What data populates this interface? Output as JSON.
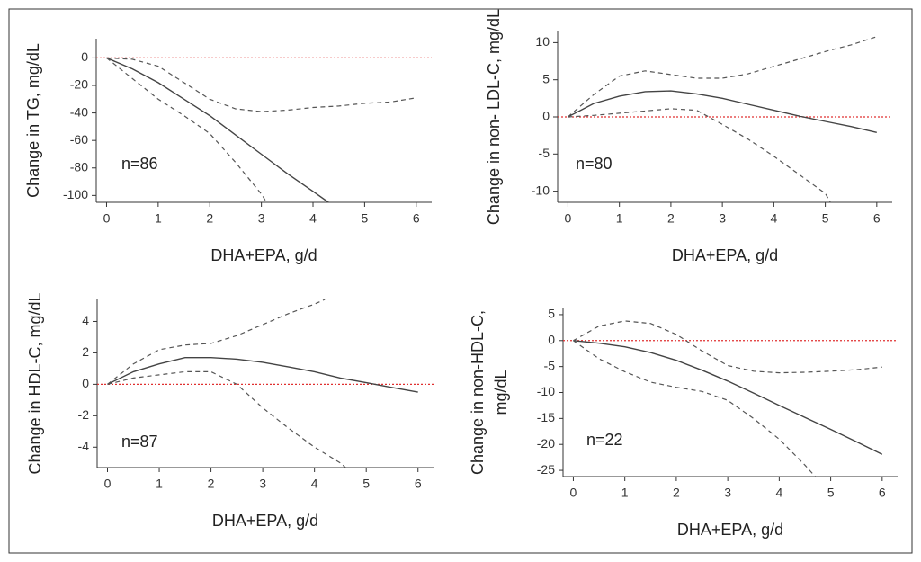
{
  "chart_data": [
    {
      "type": "line",
      "y_label": "Change in TG, mg/dL",
      "x_label": "DHA+EPA, g/d",
      "annotation": "n=86",
      "xlim": [
        -0.2,
        6.3
      ],
      "xticks": [
        0,
        1,
        2,
        3,
        4,
        5,
        6
      ],
      "ylim": [
        -105,
        14
      ],
      "yticks": [
        0,
        -20,
        -40,
        -60,
        -80,
        -100
      ],
      "reference_line": {
        "value": 0,
        "color": "#e03030"
      },
      "series": [
        {
          "color": "#444444",
          "style": "solid",
          "x": [
            0,
            0.5,
            1,
            1.5,
            2,
            2.5,
            3,
            3.5,
            4,
            4.3
          ],
          "values": [
            0,
            -8,
            -18,
            -30,
            -42,
            -56,
            -70,
            -84,
            -97,
            -105
          ]
        },
        {
          "color": "#555555",
          "style": "dashed",
          "x": [
            0,
            0.5,
            1,
            1.5,
            2,
            2.5,
            3,
            3.5,
            4,
            4.5,
            5,
            5.5,
            6
          ],
          "values": [
            0,
            -1,
            -6,
            -18,
            -30,
            -37,
            -39,
            -38,
            -36,
            -35,
            -33,
            -32,
            -29
          ]
        },
        {
          "color": "#555555",
          "style": "dashed",
          "x": [
            0,
            0.5,
            1,
            1.5,
            2,
            2.5,
            3,
            3.1
          ],
          "values": [
            0,
            -15,
            -30,
            -42,
            -55,
            -76,
            -99,
            -105
          ]
        }
      ]
    },
    {
      "type": "line",
      "y_label": "Change in non- LDL-C, mg/dL",
      "x_label": "DHA+EPA, g/d",
      "annotation": "n=80",
      "xlim": [
        -0.2,
        6.3
      ],
      "xticks": [
        0,
        1,
        2,
        3,
        4,
        5,
        6
      ],
      "ylim": [
        -11.5,
        11.5
      ],
      "yticks": [
        10,
        5,
        0,
        -5,
        -10
      ],
      "reference_line": {
        "value": 0,
        "color": "#e03030"
      },
      "series": [
        {
          "color": "#444444",
          "style": "solid",
          "x": [
            0,
            0.5,
            1,
            1.5,
            2,
            2.5,
            3,
            3.5,
            4,
            4.5,
            5,
            5.5,
            6
          ],
          "values": [
            0,
            1.8,
            2.8,
            3.4,
            3.5,
            3.1,
            2.5,
            1.7,
            0.9,
            0.1,
            -0.6,
            -1.3,
            -2.1
          ]
        },
        {
          "color": "#555555",
          "style": "dashed",
          "x": [
            0,
            0.5,
            1,
            1.5,
            2,
            2.5,
            3,
            3.5,
            4,
            4.5,
            5,
            5.5,
            6
          ],
          "values": [
            0,
            3,
            5.5,
            6.2,
            5.7,
            5.2,
            5.2,
            5.8,
            6.8,
            7.8,
            8.8,
            9.7,
            10.8
          ]
        },
        {
          "color": "#555555",
          "style": "dashed",
          "x": [
            0,
            0.5,
            1,
            1.5,
            2,
            2.5,
            3,
            3.5,
            4,
            4.5,
            5,
            5.1
          ],
          "values": [
            0,
            0.2,
            0.5,
            0.8,
            1.1,
            0.9,
            -1,
            -3,
            -5.3,
            -7.8,
            -10.3,
            -11.5
          ]
        }
      ]
    },
    {
      "type": "line",
      "y_label": "Change in HDL-C, mg/dL",
      "x_label": "DHA+EPA, g/d",
      "annotation": "n=87",
      "xlim": [
        -0.2,
        6.3
      ],
      "xticks": [
        0,
        1,
        2,
        3,
        4,
        5,
        6
      ],
      "ylim": [
        -5.3,
        5.4
      ],
      "yticks": [
        4,
        2,
        0,
        -2,
        -4
      ],
      "reference_line": {
        "value": 0,
        "color": "#e03030"
      },
      "series": [
        {
          "color": "#444444",
          "style": "solid",
          "x": [
            0,
            0.5,
            1,
            1.5,
            2,
            2.5,
            3,
            3.5,
            4,
            4.5,
            5,
            5.5,
            6
          ],
          "values": [
            0,
            0.8,
            1.3,
            1.7,
            1.7,
            1.6,
            1.4,
            1.1,
            0.8,
            0.4,
            0.1,
            -0.2,
            -0.5
          ]
        },
        {
          "color": "#555555",
          "style": "dashed",
          "x": [
            0,
            0.5,
            1,
            1.5,
            2,
            2.5,
            3,
            3.5,
            4,
            4.2
          ],
          "values": [
            0,
            1.3,
            2.2,
            2.5,
            2.6,
            3.1,
            3.8,
            4.5,
            5.1,
            5.4
          ]
        },
        {
          "color": "#555555",
          "style": "dashed",
          "x": [
            0,
            0.5,
            1,
            1.5,
            2,
            2.5,
            3,
            3.5,
            4,
            4.5,
            4.6
          ],
          "values": [
            0,
            0.4,
            0.6,
            0.8,
            0.8,
            0,
            -1.5,
            -2.8,
            -4,
            -5,
            -5.3
          ]
        }
      ]
    },
    {
      "type": "line",
      "y_label": [
        "Change in non-HDL-C,",
        "mg/dL"
      ],
      "x_label": "DHA+EPA, g/d",
      "annotation": "n=22",
      "xlim": [
        -0.2,
        6.3
      ],
      "xticks": [
        0,
        1,
        2,
        3,
        4,
        5,
        6
      ],
      "ylim": [
        -26.2,
        6.2
      ],
      "yticks": [
        5,
        0,
        -5,
        -10,
        -15,
        -20,
        -25
      ],
      "reference_line": {
        "value": 0,
        "color": "#e03030"
      },
      "series": [
        {
          "color": "#444444",
          "style": "solid",
          "x": [
            0,
            0.5,
            1,
            1.5,
            2,
            2.5,
            3,
            3.5,
            4,
            4.5,
            5,
            5.5,
            6
          ],
          "values": [
            0,
            -0.5,
            -1.2,
            -2.3,
            -3.8,
            -5.7,
            -7.8,
            -10.1,
            -12.5,
            -14.8,
            -17.1,
            -19.5,
            -21.9
          ]
        },
        {
          "color": "#555555",
          "style": "dashed",
          "x": [
            0,
            0.5,
            1,
            1.5,
            2,
            2.5,
            3,
            3.5,
            4,
            4.5,
            5,
            5.5,
            6
          ],
          "values": [
            0,
            2.8,
            3.8,
            3.3,
            1.2,
            -2,
            -4.8,
            -5.9,
            -6.2,
            -6.1,
            -5.9,
            -5.6,
            -5.1
          ]
        },
        {
          "color": "#555555",
          "style": "dashed",
          "x": [
            0,
            0.5,
            1,
            1.5,
            2,
            2.5,
            3,
            3.5,
            4,
            4.5,
            4.7
          ],
          "values": [
            0,
            -3.5,
            -6,
            -8,
            -9,
            -9.8,
            -11.5,
            -15,
            -19,
            -24,
            -26.2
          ]
        }
      ]
    }
  ]
}
